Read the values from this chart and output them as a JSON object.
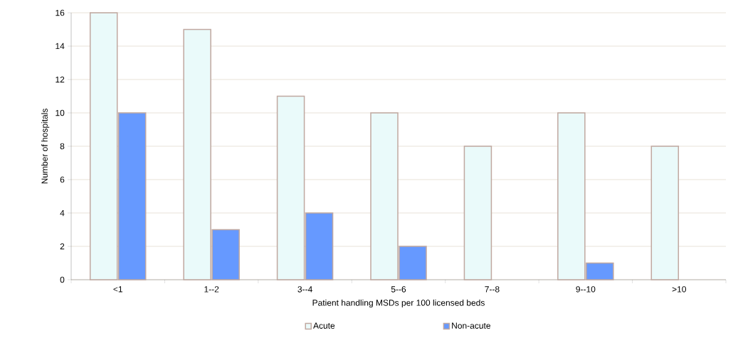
{
  "chart_data": {
    "type": "bar",
    "xlabel": "Patient handling MSDs per 100 licensed beds",
    "ylabel": "Number of hospitals",
    "categories": [
      "<1",
      "1--2",
      "3--4",
      "5--6",
      "7--8",
      "9--10",
      ">10"
    ],
    "series": [
      {
        "name": "Acute",
        "color": "#eafafa",
        "values": [
          16,
          15,
          11,
          10,
          8,
          10,
          8
        ]
      },
      {
        "name": "Non-acute",
        "color": "#6699ff",
        "values": [
          10,
          3,
          4,
          2,
          null,
          1,
          null
        ]
      }
    ],
    "ylim": [
      0,
      16
    ],
    "yticks": [
      0,
      2,
      4,
      6,
      8,
      10,
      12,
      14,
      16
    ],
    "grid": "y",
    "legend": "bottom"
  }
}
